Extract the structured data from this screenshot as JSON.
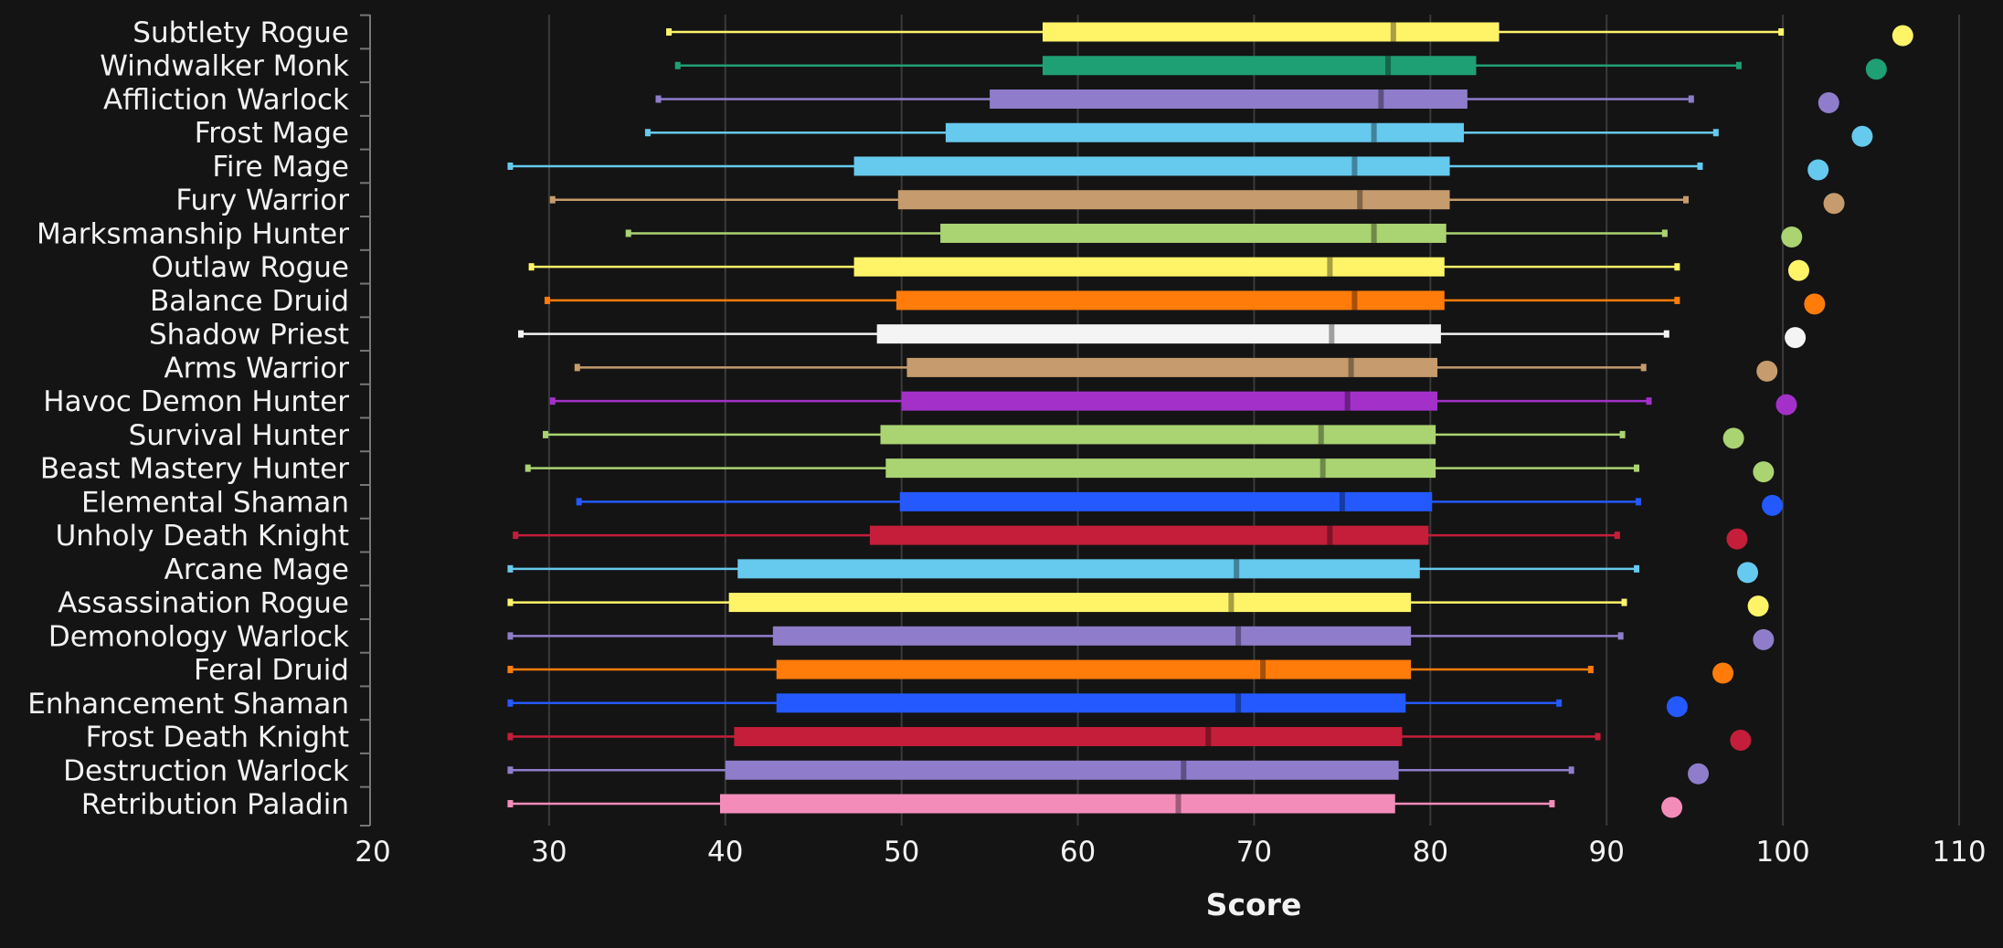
{
  "chart_data": {
    "type": "box",
    "title": "",
    "xlabel": "Score",
    "ylabel": "",
    "xlim": [
      20,
      110
    ],
    "xticks": [
      20,
      30,
      40,
      50,
      60,
      70,
      80,
      90,
      100,
      110
    ],
    "grid": "vertical",
    "background": "#141414",
    "series": [
      {
        "name": "Subtlety Rogue",
        "color": "#FFF468",
        "whisker_low": 36.8,
        "q1": 58.0,
        "median": 77.9,
        "q3": 83.9,
        "whisker_high": 99.9,
        "max": 106.8
      },
      {
        "name": "Windwalker Monk",
        "color": "#1F9F74",
        "whisker_low": 37.3,
        "q1": 58.0,
        "median": 77.6,
        "q3": 82.6,
        "whisker_high": 97.5,
        "max": 105.3
      },
      {
        "name": "Affliction Warlock",
        "color": "#8F7DCB",
        "whisker_low": 36.2,
        "q1": 55.0,
        "median": 77.2,
        "q3": 82.1,
        "whisker_high": 94.8,
        "max": 102.6
      },
      {
        "name": "Frost Mage",
        "color": "#66C9EE",
        "whisker_low": 35.6,
        "q1": 52.5,
        "median": 76.8,
        "q3": 81.9,
        "whisker_high": 96.2,
        "max": 104.5
      },
      {
        "name": "Fire Mage",
        "color": "#66C9EE",
        "whisker_low": 27.8,
        "q1": 47.3,
        "median": 75.7,
        "q3": 81.1,
        "whisker_high": 95.3,
        "max": 102.0
      },
      {
        "name": "Fury Warrior",
        "color": "#C69B6D",
        "whisker_low": 30.2,
        "q1": 49.8,
        "median": 76.0,
        "q3": 81.1,
        "whisker_high": 94.5,
        "max": 102.9
      },
      {
        "name": "Marksmanship Hunter",
        "color": "#AAD372",
        "whisker_low": 34.5,
        "q1": 52.2,
        "median": 76.8,
        "q3": 80.9,
        "whisker_high": 93.3,
        "max": 100.5
      },
      {
        "name": "Outlaw Rogue",
        "color": "#FFF468",
        "whisker_low": 29.0,
        "q1": 47.3,
        "median": 74.3,
        "q3": 80.8,
        "whisker_high": 94.0,
        "max": 100.9
      },
      {
        "name": "Balance Druid",
        "color": "#FF7C0A",
        "whisker_low": 29.9,
        "q1": 49.7,
        "median": 75.7,
        "q3": 80.8,
        "whisker_high": 94.0,
        "max": 101.8
      },
      {
        "name": "Shadow Priest",
        "color": "#F4F4F4",
        "whisker_low": 28.4,
        "q1": 48.6,
        "median": 74.4,
        "q3": 80.6,
        "whisker_high": 93.4,
        "max": 100.7
      },
      {
        "name": "Arms Warrior",
        "color": "#C69B6D",
        "whisker_low": 31.6,
        "q1": 50.3,
        "median": 75.5,
        "q3": 80.4,
        "whisker_high": 92.1,
        "max": 99.1
      },
      {
        "name": "Havoc Demon Hunter",
        "color": "#A330C9",
        "whisker_low": 30.2,
        "q1": 50.0,
        "median": 75.3,
        "q3": 80.4,
        "whisker_high": 92.4,
        "max": 100.2
      },
      {
        "name": "Survival Hunter",
        "color": "#AAD372",
        "whisker_low": 29.8,
        "q1": 48.8,
        "median": 73.8,
        "q3": 80.3,
        "whisker_high": 90.9,
        "max": 97.2
      },
      {
        "name": "Beast Mastery Hunter",
        "color": "#AAD372",
        "whisker_low": 28.8,
        "q1": 49.1,
        "median": 73.9,
        "q3": 80.3,
        "whisker_high": 91.7,
        "max": 98.9
      },
      {
        "name": "Elemental Shaman",
        "color": "#2359FF",
        "whisker_low": 31.7,
        "q1": 49.9,
        "median": 75.0,
        "q3": 80.1,
        "whisker_high": 91.8,
        "max": 99.4
      },
      {
        "name": "Unholy Death Knight",
        "color": "#C41E3A",
        "whisker_low": 28.1,
        "q1": 48.2,
        "median": 74.3,
        "q3": 79.9,
        "whisker_high": 90.6,
        "max": 97.4
      },
      {
        "name": "Arcane Mage",
        "color": "#66C9EE",
        "whisker_low": 27.8,
        "q1": 40.7,
        "median": 69.0,
        "q3": 79.4,
        "whisker_high": 91.7,
        "max": 98.0
      },
      {
        "name": "Assassination Rogue",
        "color": "#FFF468",
        "whisker_low": 27.8,
        "q1": 40.2,
        "median": 68.7,
        "q3": 78.9,
        "whisker_high": 91.0,
        "max": 98.6
      },
      {
        "name": "Demonology Warlock",
        "color": "#8F7DCB",
        "whisker_low": 27.8,
        "q1": 42.7,
        "median": 69.1,
        "q3": 78.9,
        "whisker_high": 90.8,
        "max": 98.9
      },
      {
        "name": "Feral Druid",
        "color": "#FF7C0A",
        "whisker_low": 27.8,
        "q1": 42.9,
        "median": 70.5,
        "q3": 78.9,
        "whisker_high": 89.1,
        "max": 96.6
      },
      {
        "name": "Enhancement Shaman",
        "color": "#2359FF",
        "whisker_low": 27.8,
        "q1": 42.9,
        "median": 69.1,
        "q3": 78.6,
        "whisker_high": 87.3,
        "max": 94.0
      },
      {
        "name": "Frost Death Knight",
        "color": "#C41E3A",
        "whisker_low": 27.8,
        "q1": 40.5,
        "median": 67.4,
        "q3": 78.4,
        "whisker_high": 89.5,
        "max": 97.6
      },
      {
        "name": "Destruction Warlock",
        "color": "#8F7DCB",
        "whisker_low": 27.8,
        "q1": 40.0,
        "median": 66.0,
        "q3": 78.2,
        "whisker_high": 88.0,
        "max": 95.2
      },
      {
        "name": "Retribution Paladin",
        "color": "#F48CBA",
        "whisker_low": 27.8,
        "q1": 39.7,
        "median": 65.7,
        "q3": 78.0,
        "whisker_high": 86.9,
        "max": 93.7
      }
    ]
  }
}
